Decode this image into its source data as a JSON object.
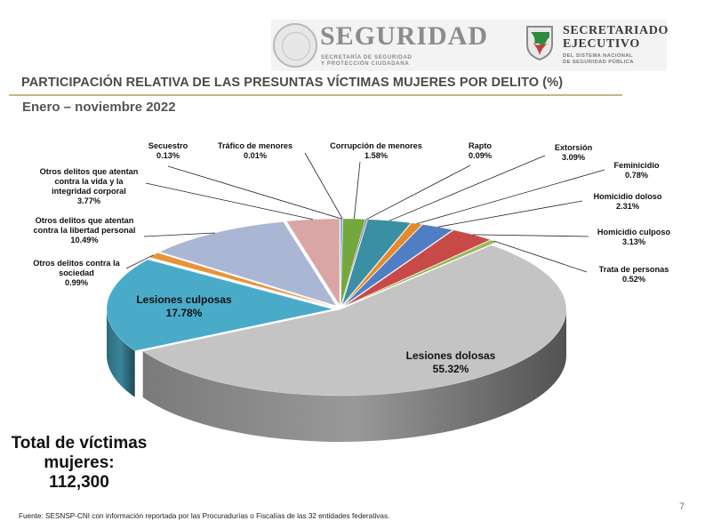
{
  "header": {
    "brand_title": "SEGURIDAD",
    "brand_sub_1": "SECRETARÍA DE SEGURIDAD",
    "brand_sub_2": "Y PROTECCIÓN CIUDADANA",
    "se_title_1": "SECRETARIADO",
    "se_title_2": "EJECUTIVO",
    "se_sub_1": "DEL SISTEMA NACIONAL",
    "se_sub_2": "DE SEGURIDAD PÚBLICA"
  },
  "title": "PARTICIPACIÓN RELATIVA DE LAS PRESUNTAS VÍCTIMAS MUJERES POR DELITO (%)",
  "period": "Enero – noviembre 2022",
  "total": {
    "line1": "Total de víctimas",
    "line2": "mujeres:",
    "line3": "112,300"
  },
  "footer": "Fuente: SESNSP-CNI con información reportada por las Procuradurías o Fiscalías de las 32 entidades federativas.",
  "page_number": "7",
  "colors": {
    "accent_rule": "#c8b48a",
    "title_text": "#4a4a4a"
  },
  "chart_data": {
    "type": "pie",
    "style": "3d-exploded",
    "slices": [
      {
        "label": "Secuestro",
        "value": 0.13,
        "value_label": "0.13%",
        "color": "#6a9fd0"
      },
      {
        "label": "Tráfico de menores",
        "value": 0.01,
        "value_label": "0.01%",
        "color": "#4aa5a8"
      },
      {
        "label": "Corrupción de menores",
        "value": 1.58,
        "value_label": "1.58%",
        "color": "#74a83c"
      },
      {
        "label": "Rapto",
        "value": 0.09,
        "value_label": "0.09%",
        "color": "#7a5ba0"
      },
      {
        "label": "Extorsión",
        "value": 3.09,
        "value_label": "3.09%",
        "color": "#3a8fa3"
      },
      {
        "label": "Feminicidio",
        "value": 0.78,
        "value_label": "0.78%",
        "color": "#e58a2a"
      },
      {
        "label": "Homicidio doloso",
        "value": 2.31,
        "value_label": "2.31%",
        "color": "#4f7ec4"
      },
      {
        "label": "Homicidio culposo",
        "value": 3.13,
        "value_label": "3.13%",
        "color": "#c84a48"
      },
      {
        "label": "Trata de personas",
        "value": 0.52,
        "value_label": "0.52%",
        "color": "#9bb85a"
      },
      {
        "label": "Lesiones dolosas",
        "value": 55.32,
        "value_label": "55.32%",
        "color": "#c4c4c4"
      },
      {
        "label": "Lesiones culposas",
        "value": 17.78,
        "value_label": "17.78%",
        "color": "#4aabc8"
      },
      {
        "label": "Otros delitos contra la sociedad",
        "value": 0.99,
        "value_label": "0.99%",
        "color": "#e8923a"
      },
      {
        "label": "Otros delitos que atentan contra la libertad personal",
        "value": 10.49,
        "value_label": "10.49%",
        "color": "#a9b6d4"
      },
      {
        "label": "Otros delitos que atentan contra la vida y la integridad corporal",
        "value": 3.77,
        "value_label": "3.77%",
        "color": "#dba5a6"
      }
    ]
  }
}
